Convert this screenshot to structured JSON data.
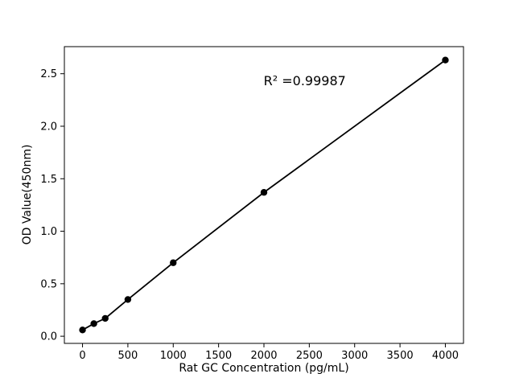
{
  "figure": {
    "background": "#ffffff",
    "frame_color": "#000000"
  },
  "chart_data": {
    "type": "scatter",
    "title": "",
    "xlabel": "Rat GC Concentration (pg/mL)",
    "ylabel": "OD Value(450nm)",
    "x": [
      0,
      125,
      250,
      500,
      1000,
      2000,
      4000
    ],
    "y": [
      0.06,
      0.12,
      0.17,
      0.35,
      0.7,
      1.37,
      2.63
    ],
    "line_through_points": true,
    "marker": "circle",
    "marker_color": "#000000",
    "line_color": "#000000",
    "xticks": [
      0,
      500,
      1000,
      1500,
      2000,
      2500,
      3000,
      3500,
      4000
    ],
    "xtick_labels": [
      "0",
      "500",
      "1000",
      "1500",
      "2000",
      "2500",
      "3000",
      "3500",
      "4000"
    ],
    "yticks": [
      0.0,
      0.5,
      1.0,
      1.5,
      2.0,
      2.5
    ],
    "ytick_labels": [
      "0.0",
      "0.5",
      "1.0",
      "1.5",
      "2.0",
      "2.5"
    ],
    "xlim": [
      -200,
      4200
    ],
    "ylim": [
      -0.068,
      2.758
    ],
    "grid": false,
    "legend": null,
    "annotation": {
      "text": "R² =0.99987",
      "x": 2450,
      "y": 2.43
    }
  }
}
